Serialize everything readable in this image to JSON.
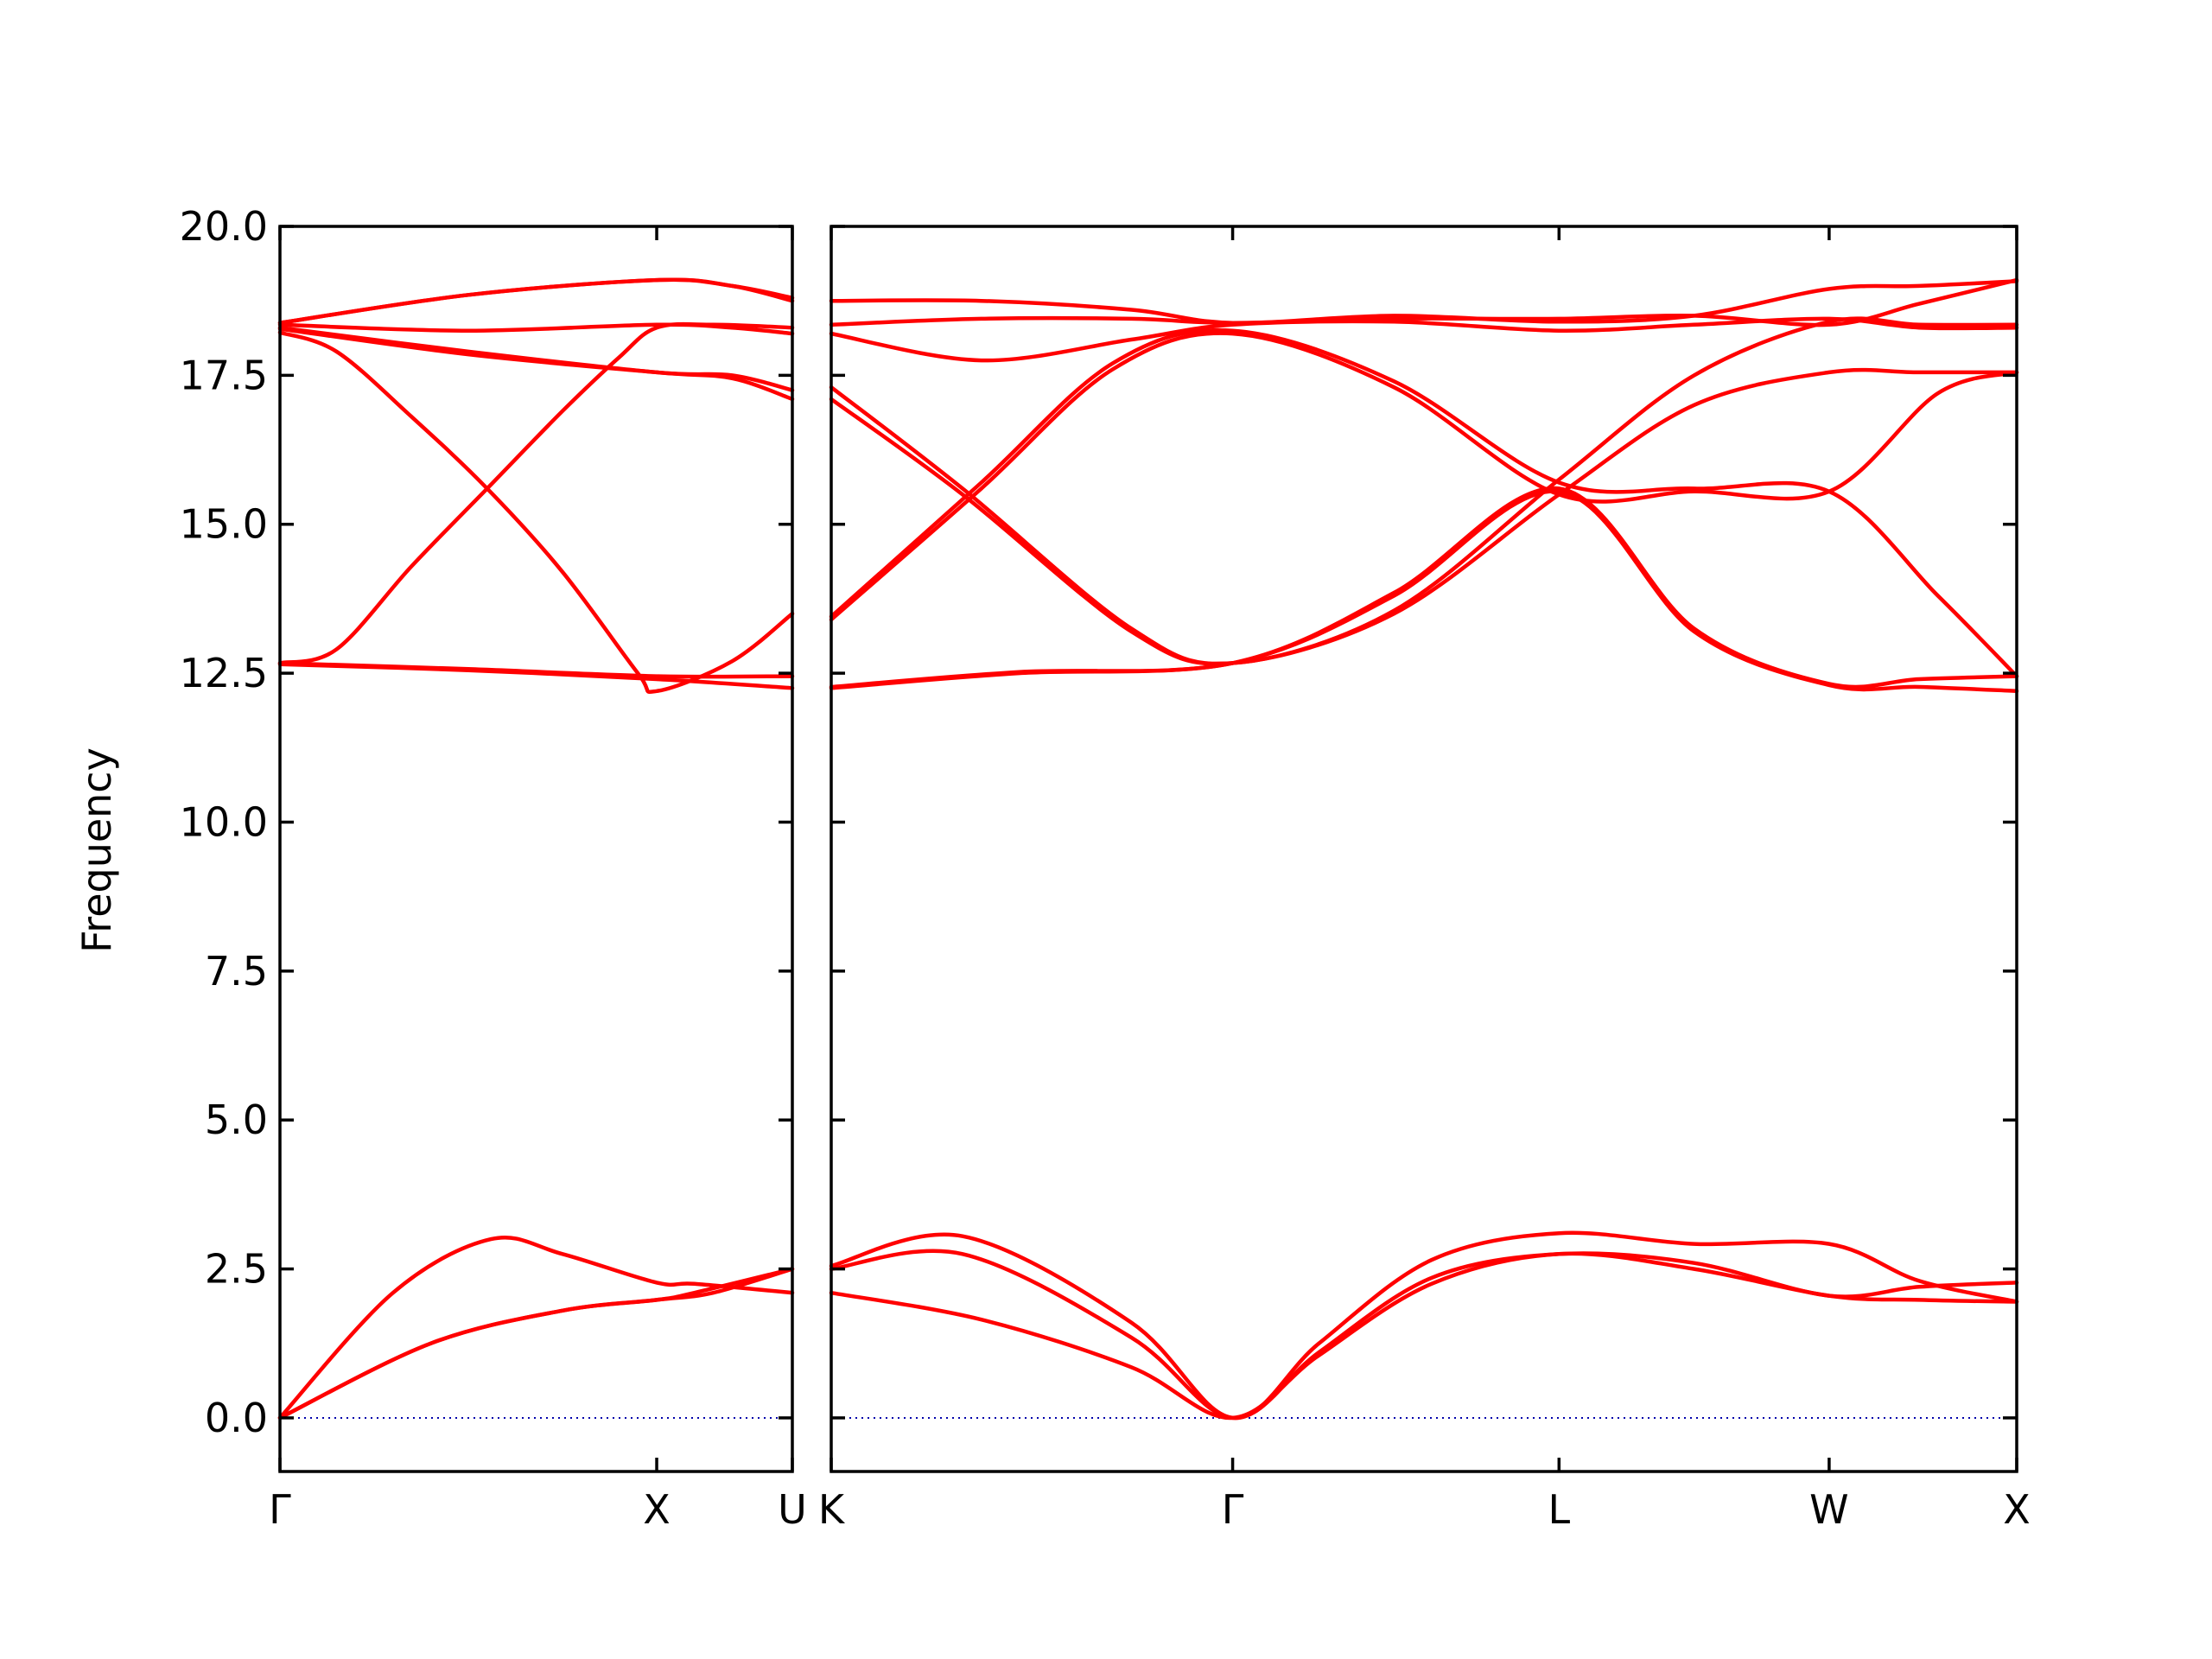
{
  "chart_data": {
    "type": "line",
    "title": "",
    "ylabel": "Frequency",
    "ylim": [
      -0.9,
      20.0
    ],
    "yticks": [
      "0.0",
      "2.5",
      "5.0",
      "7.5",
      "10.0",
      "12.5",
      "15.0",
      "17.5",
      "20.0"
    ],
    "grid": false,
    "line_color": "#ff0000",
    "zero_line_color": "#0000aa",
    "panels": [
      {
        "name": "panel-1",
        "path_labels": [
          "Γ",
          "X",
          "U"
        ],
        "path_positions": [
          0,
          1,
          1.36
        ],
        "x_range": [
          0,
          1.36
        ],
        "bands": [
          {
            "x": [
              0,
              0.3,
              0.56,
              0.75,
              1.0,
              1.1,
              1.36
            ],
            "y": [
              0.0,
              2.1,
              3.0,
              2.75,
              2.27,
              2.25,
              2.1
            ]
          },
          {
            "x": [
              0,
              0.4,
              0.75,
              1.0,
              1.15,
              1.36
            ],
            "y": [
              0.0,
              1.25,
              1.8,
              1.98,
              2.1,
              2.5
            ]
          },
          {
            "x": [
              0,
              0.4,
              0.75,
              1.0,
              1.1,
              1.36
            ],
            "y": [
              0.0,
              1.25,
              1.8,
              1.98,
              2.1,
              2.5
            ]
          },
          {
            "x": [
              0,
              0.5,
              1.0,
              1.36
            ],
            "y": [
              12.65,
              12.55,
              12.4,
              12.25
            ]
          },
          {
            "x": [
              0,
              0.5,
              1.0,
              1.36
            ],
            "y": [
              12.67,
              12.57,
              12.45,
              12.45
            ]
          },
          {
            "x": [
              0,
              0.15,
              0.35,
              0.55,
              0.75,
              0.9,
              1.0,
              1.15,
              1.36
            ],
            "y": [
              12.67,
              12.9,
              14.3,
              15.6,
              16.9,
              17.8,
              18.3,
              18.35,
              18.3
            ]
          },
          {
            "x": [
              0,
              0.15,
              0.35,
              0.55,
              0.75,
              0.95,
              1.0,
              1.2,
              1.36
            ],
            "y": [
              18.22,
              17.9,
              16.8,
              15.6,
              14.2,
              12.5,
              12.2,
              12.7,
              13.5
            ]
          },
          {
            "x": [
              0,
              0.5,
              1.0,
              1.2,
              1.36
            ],
            "y": [
              18.28,
              17.85,
              17.55,
              17.45,
              17.1
            ]
          },
          {
            "x": [
              0,
              0.5,
              1.0,
              1.2,
              1.36
            ],
            "y": [
              18.3,
              17.9,
              17.55,
              17.5,
              17.25
            ]
          },
          {
            "x": [
              0,
              0.5,
              1.0,
              1.2,
              1.36
            ],
            "y": [
              18.35,
              18.25,
              18.35,
              18.3,
              18.2
            ]
          },
          {
            "x": [
              0,
              0.5,
              1.0,
              1.2,
              1.36
            ],
            "y": [
              18.38,
              18.85,
              19.1,
              19.0,
              18.75
            ]
          },
          {
            "x": [
              0,
              0.5,
              1.0,
              1.2,
              1.36
            ],
            "y": [
              18.38,
              18.85,
              19.1,
              19.0,
              18.8
            ]
          }
        ]
      },
      {
        "name": "panel-2",
        "path_labels": [
          "K",
          "Γ",
          "L",
          "W",
          "X"
        ],
        "path_positions": [
          0,
          1.07,
          1.94,
          2.66,
          3.16
        ],
        "x_range": [
          0,
          3.16
        ],
        "bands": [
          {
            "x": [
              0,
              0.4,
              0.8,
              1.07,
              1.3,
              1.6,
              1.94,
              2.3,
              2.66,
              2.9,
              3.16
            ],
            "y": [
              2.1,
              1.65,
              0.85,
              0.0,
              1.05,
              2.25,
              2.75,
              2.5,
              2.05,
              1.98,
              1.95
            ]
          },
          {
            "x": [
              0,
              0.35,
              0.8,
              1.07,
              1.3,
              1.6,
              1.94,
              2.3,
              2.66,
              2.9,
              3.16
            ],
            "y": [
              2.5,
              2.75,
              1.35,
              0.0,
              1.1,
              2.35,
              2.75,
              2.6,
              2.05,
              2.2,
              2.27
            ]
          },
          {
            "x": [
              0,
              0.35,
              0.8,
              1.07,
              1.3,
              1.6,
              1.94,
              2.3,
              2.66,
              2.9,
              3.16
            ],
            "y": [
              2.55,
              3.05,
              1.6,
              0.0,
              1.25,
              2.65,
              3.1,
              2.92,
              2.92,
              2.3,
              1.95
            ]
          },
          {
            "x": [
              0,
              0.5,
              1.07,
              1.5,
              1.94,
              2.3,
              2.66,
              2.9,
              3.16
            ],
            "y": [
              12.25,
              12.5,
              12.67,
              13.8,
              15.55,
              13.2,
              12.3,
              12.27,
              12.2
            ]
          },
          {
            "x": [
              0,
              0.5,
              1.07,
              1.5,
              1.94,
              2.3,
              2.66,
              2.9,
              3.16
            ],
            "y": [
              12.27,
              12.52,
              12.67,
              13.85,
              15.6,
              13.25,
              12.32,
              12.4,
              12.45
            ]
          },
          {
            "x": [
              0,
              0.4,
              0.75,
              1.07,
              1.5,
              1.94,
              2.3,
              2.66,
              2.95,
              3.16
            ],
            "y": [
              13.4,
              15.6,
              17.6,
              18.2,
              17.3,
              15.5,
              15.55,
              15.55,
              17.2,
              17.55
            ]
          },
          {
            "x": [
              0,
              0.4,
              0.75,
              1.07,
              1.5,
              1.94,
              2.3,
              2.66,
              2.95,
              3.16
            ],
            "y": [
              13.45,
              15.7,
              17.7,
              18.25,
              17.4,
              15.7,
              15.6,
              15.55,
              13.8,
              12.45
            ]
          },
          {
            "x": [
              0,
              0.35,
              0.8,
              1.07,
              1.5,
              1.94,
              2.3,
              2.66,
              2.9,
              3.16
            ],
            "y": [
              17.1,
              15.5,
              13.2,
              12.67,
              13.5,
              15.5,
              17.0,
              17.55,
              17.55,
              17.55
            ]
          },
          {
            "x": [
              0,
              0.35,
              0.8,
              1.07,
              1.5,
              1.94,
              2.3,
              2.66,
              2.9,
              3.16
            ],
            "y": [
              17.3,
              15.6,
              13.25,
              12.67,
              13.55,
              15.75,
              17.5,
              18.4,
              18.35,
              18.35
            ]
          },
          {
            "x": [
              0,
              0.4,
              0.8,
              1.07,
              1.5,
              1.94,
              2.3,
              2.66,
              2.9,
              3.16
            ],
            "y": [
              18.2,
              17.75,
              18.1,
              18.35,
              18.4,
              18.25,
              18.35,
              18.45,
              18.3,
              18.3
            ]
          },
          {
            "x": [
              0,
              0.4,
              0.8,
              1.07,
              1.5,
              1.94,
              2.3,
              2.66,
              2.9,
              3.16
            ],
            "y": [
              18.35,
              18.45,
              18.45,
              18.38,
              18.45,
              18.45,
              18.5,
              18.35,
              18.7,
              19.1
            ]
          },
          {
            "x": [
              0,
              0.4,
              0.8,
              1.07,
              1.5,
              1.94,
              2.3,
              2.66,
              2.9,
              3.16
            ],
            "y": [
              18.75,
              18.75,
              18.6,
              18.38,
              18.5,
              18.4,
              18.5,
              18.95,
              19.0,
              19.08
            ]
          }
        ]
      }
    ]
  }
}
